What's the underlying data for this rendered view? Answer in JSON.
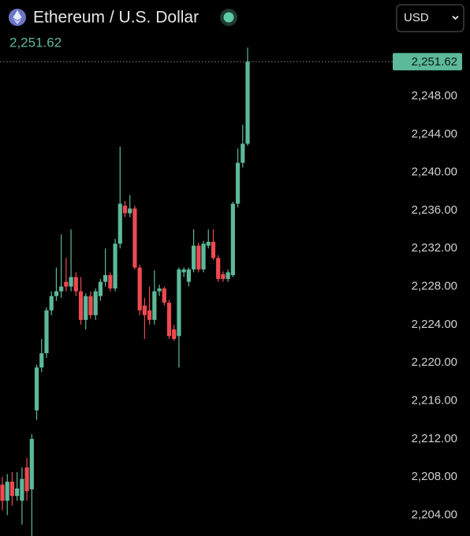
{
  "header": {
    "title": "Ethereum / U.S. Dollar",
    "currency": "USD"
  },
  "chart_data": {
    "type": "candlestick",
    "up_color": "#5cb99a",
    "down_color": "#ef4950",
    "open": [
      2207.2,
      2205.5,
      2207.5,
      2206.0,
      2205.5,
      2209.0,
      2206.7,
      2215.0,
      2219.5,
      2221.0,
      2225.5,
      2227.0,
      2227.5,
      2228.5,
      2228.0,
      2229.0,
      2227.5,
      2224.5,
      2227.0,
      2225.0,
      2227.0,
      2228.5,
      2229.2,
      2227.8,
      2232.5,
      2236.5,
      2235.7,
      2236.2,
      2230.0,
      2226.0,
      2225.5,
      2224.5,
      2227.5,
      2227.8,
      2226.3,
      2223.5,
      2222.8,
      2229.5,
      2228.5,
      2229.8,
      2232.3,
      2229.8,
      2232.3,
      2232.7,
      2231.0,
      2229.3,
      2228.8,
      2229.2,
      2236.7,
      2241.0,
      2243.0
    ],
    "high": [
      2208.0,
      2208.3,
      2208.5,
      2208.5,
      2209.0,
      2210.0,
      2212.5,
      2219.8,
      2222.5,
      2225.8,
      2227.5,
      2230.0,
      2233.5,
      2231.0,
      2234.0,
      2229.5,
      2229.0,
      2227.3,
      2227.5,
      2227.8,
      2228.8,
      2232.0,
      2229.5,
      2233.0,
      2242.7,
      2237.0,
      2237.6,
      2236.5,
      2230.3,
      2226.8,
      2228.0,
      2229.7,
      2228.2,
      2228.0,
      2226.6,
      2224.0,
      2230.0,
      2230.0,
      2230.0,
      2234.0,
      2232.6,
      2232.8,
      2234.0,
      2234.0,
      2231.3,
      2229.6,
      2229.8,
      2236.9,
      2242.5,
      2245.0,
      2253.1
    ],
    "low": [
      2204.5,
      2204.0,
      2205.0,
      2205.5,
      2203.0,
      2205.5,
      2201.8,
      2214.0,
      2219.0,
      2220.5,
      2225.0,
      2226.5,
      2226.8,
      2227.5,
      2227.5,
      2227.0,
      2224.0,
      2223.5,
      2224.6,
      2224.5,
      2226.5,
      2228.0,
      2227.5,
      2227.5,
      2232.0,
      2235.3,
      2235.3,
      2229.8,
      2225.0,
      2222.5,
      2224.0,
      2224.0,
      2227.0,
      2226.0,
      2222.5,
      2222.3,
      2219.5,
      2229.0,
      2228.0,
      2229.5,
      2229.5,
      2229.5,
      2232.0,
      2230.8,
      2228.5,
      2228.5,
      2228.5,
      2229.0,
      2236.3,
      2240.5,
      2242.8
    ],
    "close": [
      2205.5,
      2207.5,
      2206.0,
      2206.8,
      2207.8,
      2206.5,
      2212.0,
      2219.5,
      2221.0,
      2225.5,
      2227.0,
      2227.5,
      2228.0,
      2228.0,
      2229.0,
      2227.5,
      2224.5,
      2227.0,
      2225.0,
      2227.5,
      2228.5,
      2229.2,
      2227.8,
      2232.5,
      2236.7,
      2235.7,
      2236.2,
      2230.0,
      2225.5,
      2225.0,
      2224.5,
      2227.5,
      2227.8,
      2226.3,
      2222.8,
      2222.5,
      2229.8,
      2229.8,
      2229.8,
      2232.3,
      2229.8,
      2232.5,
      2232.7,
      2231.0,
      2228.8,
      2228.8,
      2229.5,
      2236.7,
      2241.0,
      2243.0,
      2251.62
    ],
    "last_price": {
      "value": 2251.62,
      "label": "2,251.62"
    },
    "ylim": [
      2201.8,
      2258.1
    ],
    "yticks": [
      {
        "value": 2204,
        "label": "2,204.00"
      },
      {
        "value": 2208,
        "label": "2,208.00"
      },
      {
        "value": 2212,
        "label": "2,212.00"
      },
      {
        "value": 2216,
        "label": "2,216.00"
      },
      {
        "value": 2220,
        "label": "2,220.00"
      },
      {
        "value": 2224,
        "label": "2,224.00"
      },
      {
        "value": 2228,
        "label": "2,228.00"
      },
      {
        "value": 2232,
        "label": "2,232.00"
      },
      {
        "value": 2236,
        "label": "2,236.00"
      },
      {
        "value": 2240,
        "label": "2,240.00"
      },
      {
        "value": 2244,
        "label": "2,244.00"
      },
      {
        "value": 2248,
        "label": "2,248.00"
      }
    ]
  }
}
